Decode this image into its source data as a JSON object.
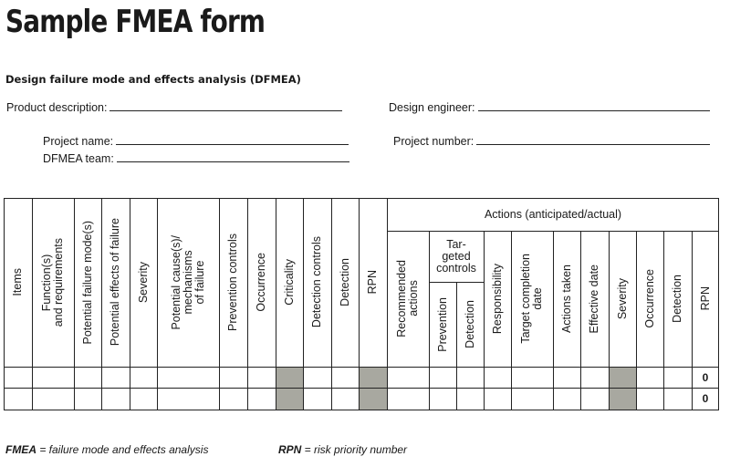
{
  "title": "Sample FMEA form",
  "subtitle": "Design failure mode and effects analysis (DFMEA)",
  "fields": {
    "product_description": "Product description:",
    "design_engineer": "Design engineer:",
    "project_name": "Project name:",
    "project_number": "Project number:",
    "dfmea_team": "DFMEA team:"
  },
  "table": {
    "actions_header": "Actions (anticipated/actual)",
    "targeted_controls": "Tar-\ngeted\ncontrols",
    "columns": [
      "Items",
      "Function(s)\nand requirements",
      "Potential failure mode(s)",
      "Potential effects of failure",
      "Severity",
      "Potential cause(s)/\nmechanisms\nof failure",
      "Prevention controls",
      "Occurrence",
      "Criticality",
      "Detection controls",
      "Detection",
      "RPN"
    ],
    "action_columns": [
      "Recommended\nactions",
      "Prevention",
      "Detection",
      "Responsibility",
      "Target completion\ndate",
      "Actions taken",
      "Effective date",
      "Severity",
      "Occurrence",
      "Detection",
      "RPN"
    ],
    "rows": [
      {
        "rpn": "0"
      },
      {
        "rpn": "0"
      }
    ]
  },
  "footer": {
    "fmea_abbr": "FMEA",
    "fmea_def": " = failure mode and effects analysis",
    "rpn_abbr": "RPN",
    "rpn_def": " = risk priority number"
  },
  "colors": {
    "shade": "#a8a8a0",
    "rule": "#222222"
  }
}
